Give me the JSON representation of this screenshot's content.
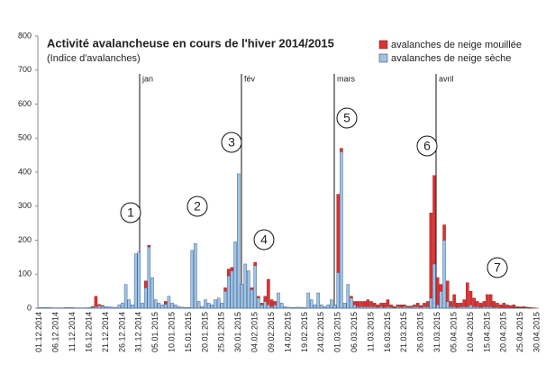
{
  "chart_data": {
    "type": "stacked-bar",
    "title": "Activité avalancheuse en cours de l'hiver 2014/2015",
    "subtitle": "(Indice d'avalanches)",
    "categories": [
      "01.12.2014",
      null,
      null,
      null,
      null,
      "06.12.2014",
      null,
      null,
      null,
      null,
      "11.12.2014",
      null,
      null,
      null,
      null,
      "16.12.2014",
      null,
      null,
      null,
      null,
      "21.12.2014",
      null,
      null,
      null,
      null,
      "26.12.2014",
      null,
      null,
      null,
      null,
      "31.12.2014",
      null,
      null,
      null,
      null,
      "05.01.2015",
      null,
      null,
      null,
      null,
      "10.01.2015",
      null,
      null,
      null,
      null,
      "15.01.2015",
      null,
      null,
      null,
      null,
      "20.01.2015",
      null,
      null,
      null,
      null,
      "25.01.2015",
      null,
      null,
      null,
      null,
      "30.01.2015",
      null,
      null,
      null,
      null,
      "04.02.2015",
      null,
      null,
      null,
      null,
      "09.02.2015",
      null,
      null,
      null,
      null,
      "14.02.2015",
      null,
      null,
      null,
      null,
      "19.02.2015",
      null,
      null,
      null,
      null,
      "24.02.2015",
      null,
      null,
      null,
      null,
      "01.03.2015",
      null,
      null,
      null,
      null,
      "06.03.2015",
      null,
      null,
      null,
      null,
      "11.03.2015",
      null,
      null,
      null,
      null,
      "16.03.2015",
      null,
      null,
      null,
      null,
      "21.03.2015",
      null,
      null,
      null,
      null,
      "26.03.2015",
      null,
      null,
      null,
      null,
      "31.03.2015",
      null,
      null,
      null,
      null,
      "05.04.2015",
      null,
      null,
      null,
      null,
      "10.04.2015",
      null,
      null,
      null,
      null,
      "15.04.2015",
      null,
      null,
      null,
      null,
      "20.04.2015",
      null,
      null,
      null,
      null,
      "25.04.2015",
      null,
      null,
      null,
      null,
      "30.04.2015"
    ],
    "series": [
      {
        "name": "avalanches de neige sèche",
        "color": "#9dc3e6",
        "values": [
          2,
          2,
          2,
          2,
          1,
          1,
          1,
          1,
          2,
          2,
          2,
          1,
          1,
          1,
          1,
          2,
          3,
          5,
          8,
          6,
          5,
          4,
          3,
          2,
          10,
          15,
          70,
          25,
          10,
          160,
          165,
          15,
          60,
          180,
          90,
          25,
          15,
          10,
          12,
          35,
          15,
          10,
          5,
          3,
          2,
          2,
          170,
          190,
          20,
          5,
          25,
          15,
          10,
          25,
          30,
          15,
          50,
          95,
          110,
          195,
          395,
          70,
          130,
          110,
          55,
          125,
          30,
          10,
          20,
          10,
          5,
          10,
          45,
          15,
          5,
          3,
          2,
          2,
          3,
          2,
          2,
          45,
          25,
          10,
          45,
          10,
          5,
          10,
          25,
          10,
          105,
          460,
          15,
          70,
          30,
          10,
          5,
          5,
          5,
          5,
          5,
          5,
          3,
          5,
          3,
          5,
          3,
          2,
          5,
          3,
          5,
          3,
          3,
          5,
          5,
          3,
          5,
          5,
          30,
          130,
          10,
          50,
          200,
          20,
          5,
          5,
          3,
          5,
          5,
          5,
          10,
          5,
          5,
          3,
          5,
          5,
          5,
          3,
          3,
          2,
          2,
          2,
          2,
          1,
          1,
          1,
          1,
          1,
          0,
          0,
          0
        ]
      },
      {
        "name": "avalanches de neige mouillée",
        "color": "#e03030",
        "values": [
          0,
          0,
          0,
          0,
          0,
          0,
          0,
          0,
          0,
          0,
          0,
          0,
          0,
          0,
          0,
          0,
          2,
          30,
          3,
          2,
          0,
          0,
          0,
          0,
          0,
          0,
          0,
          0,
          0,
          0,
          0,
          0,
          20,
          5,
          0,
          0,
          0,
          0,
          8,
          0,
          0,
          0,
          0,
          0,
          0,
          0,
          0,
          0,
          0,
          0,
          0,
          0,
          0,
          0,
          0,
          0,
          10,
          20,
          10,
          0,
          0,
          0,
          0,
          0,
          5,
          10,
          5,
          5,
          15,
          75,
          20,
          10,
          0,
          0,
          0,
          0,
          0,
          0,
          0,
          0,
          0,
          0,
          0,
          0,
          0,
          0,
          0,
          0,
          0,
          0,
          230,
          10,
          0,
          0,
          5,
          10,
          15,
          15,
          15,
          20,
          15,
          10,
          7,
          10,
          12,
          20,
          7,
          3,
          5,
          7,
          5,
          3,
          3,
          5,
          10,
          5,
          10,
          15,
          250,
          260,
          80,
          20,
          45,
          60,
          15,
          35,
          12,
          10,
          20,
          70,
          40,
          25,
          15,
          12,
          15,
          35,
          35,
          17,
          12,
          8,
          13,
          8,
          6,
          9,
          4,
          3,
          4,
          2,
          2,
          1,
          0
        ]
      }
    ],
    "ylim": [
      0,
      800
    ],
    "yticks": [
      0,
      100,
      200,
      300,
      400,
      500,
      600,
      700,
      800
    ],
    "month_markers": [
      "jan",
      "fév",
      "mars",
      "avril"
    ],
    "annotations": [
      "1",
      "2",
      "3",
      "4",
      "5",
      "6",
      "7"
    ]
  }
}
